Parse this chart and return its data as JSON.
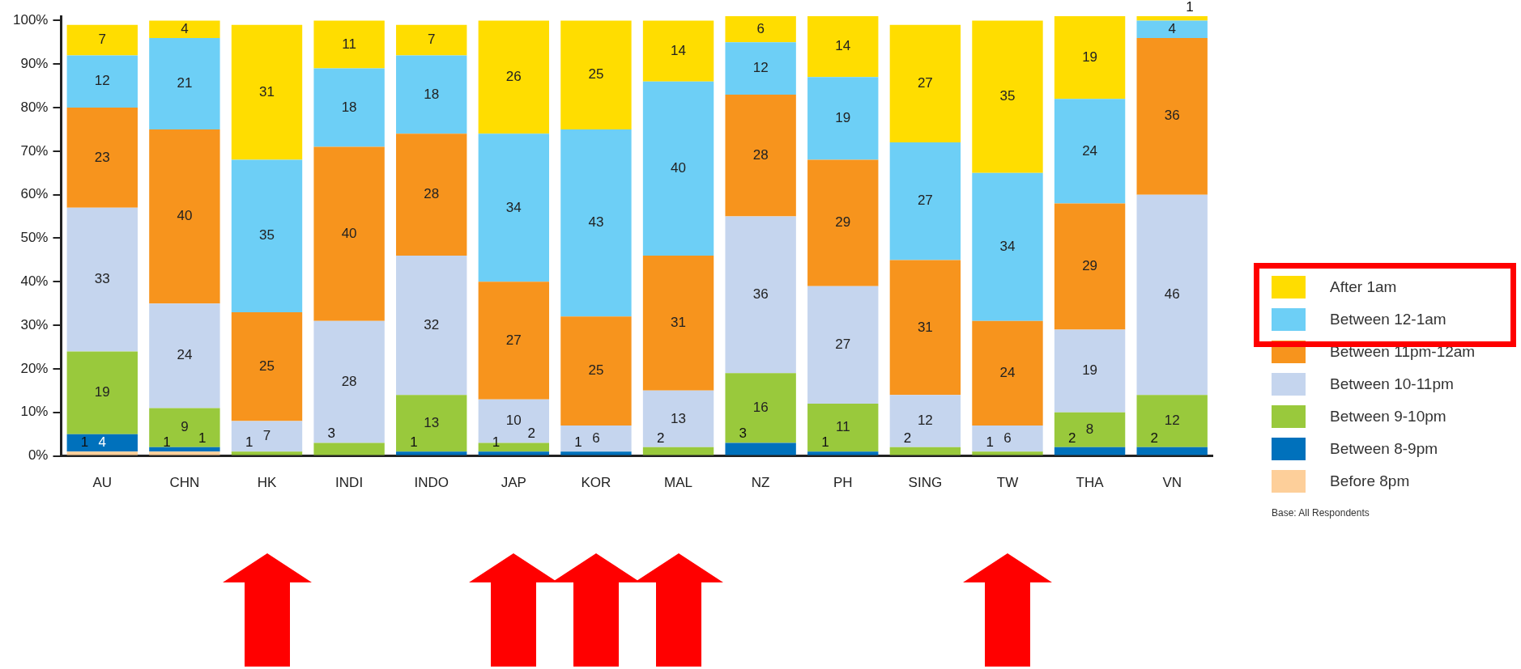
{
  "chart_data": {
    "type": "bar",
    "stacked": true,
    "categories": [
      "AU",
      "CHN",
      "HK",
      "INDI",
      "INDO",
      "JAP",
      "KOR",
      "MAL",
      "NZ",
      "PH",
      "SING",
      "TW",
      "THA",
      "VN"
    ],
    "series": [
      {
        "name": "Before 8pm",
        "color": "#fdcf9a",
        "values": [
          1,
          1,
          null,
          null,
          null,
          null,
          null,
          null,
          null,
          null,
          null,
          null,
          null,
          null
        ]
      },
      {
        "name": "Between 8-9pm",
        "color": "#0071bc",
        "values": [
          4,
          1,
          null,
          null,
          1,
          1,
          1,
          null,
          3,
          1,
          null,
          null,
          2,
          2
        ]
      },
      {
        "name": "Between 9-10pm",
        "color": "#99c93c",
        "values": [
          19,
          9,
          1,
          3,
          13,
          2,
          null,
          2,
          16,
          11,
          2,
          1,
          8,
          12
        ]
      },
      {
        "name": "Between 10-11pm",
        "color": "#c5d5ee",
        "values": [
          33,
          24,
          7,
          28,
          32,
          10,
          6,
          13,
          36,
          27,
          12,
          6,
          19,
          46
        ]
      },
      {
        "name": "Between 11pm-12am",
        "color": "#f7941d",
        "values": [
          23,
          40,
          25,
          40,
          28,
          27,
          25,
          31,
          28,
          29,
          31,
          24,
          29,
          36
        ]
      },
      {
        "name": "Between 12-1am",
        "color": "#6dcff6",
        "values": [
          12,
          21,
          35,
          18,
          18,
          34,
          43,
          40,
          12,
          19,
          27,
          34,
          24,
          4
        ]
      },
      {
        "name": "After 1am",
        "color": "#ffdd00",
        "values": [
          7,
          4,
          31,
          11,
          7,
          26,
          25,
          14,
          6,
          14,
          27,
          35,
          19,
          1
        ]
      }
    ],
    "ylim": [
      0,
      101
    ],
    "yticks": [
      {
        "value": 0,
        "label": "0%"
      },
      {
        "value": 10,
        "label": "10%"
      },
      {
        "value": 20,
        "label": "20%"
      },
      {
        "value": 30,
        "label": "30%"
      },
      {
        "value": 40,
        "label": "40%"
      },
      {
        "value": 50,
        "label": "50%"
      },
      {
        "value": 60,
        "label": "60%"
      },
      {
        "value": 70,
        "label": "70%"
      },
      {
        "value": 80,
        "label": "80%"
      },
      {
        "value": 90,
        "label": "90%"
      },
      {
        "value": 100,
        "label": "100%"
      }
    ],
    "grid": false,
    "legend": "right",
    "data_labels": true,
    "annotations": [
      "Base: All Respondents"
    ]
  }
}
